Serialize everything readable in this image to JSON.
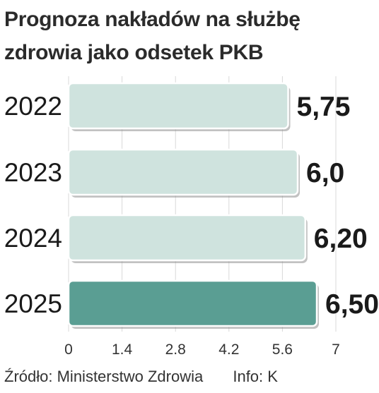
{
  "title_lines": [
    "Prognoza nakładów na służbę",
    "zdrowia jako odsetek PKB"
  ],
  "source": {
    "label": "Źródło:",
    "name": "Ministerstwo Zdrowia",
    "info": "Info: K"
  },
  "colors": {
    "bar": "#cfe3de",
    "bar_highlight": "#5a9e93",
    "bar_shadow": "#8f8f8f",
    "bar_border": "#ffffff",
    "grid": "#d9d9d9",
    "text": "#1a1a1a"
  },
  "chart_data": {
    "type": "bar",
    "orientation": "horizontal",
    "categories": [
      "2022",
      "2023",
      "2024",
      "2025"
    ],
    "values": [
      5.75,
      6.0,
      6.2,
      6.5
    ],
    "value_labels": [
      "5,75",
      "6,0",
      "6,20",
      "6,50"
    ],
    "highlight_index": 3,
    "xlim": [
      0,
      7
    ],
    "x_ticks": [
      "0",
      "1.4",
      "2.8",
      "4.2",
      "5.6",
      "7"
    ],
    "x_tick_values": [
      0,
      1.4,
      2.8,
      4.2,
      5.6,
      7
    ],
    "grid": true
  }
}
